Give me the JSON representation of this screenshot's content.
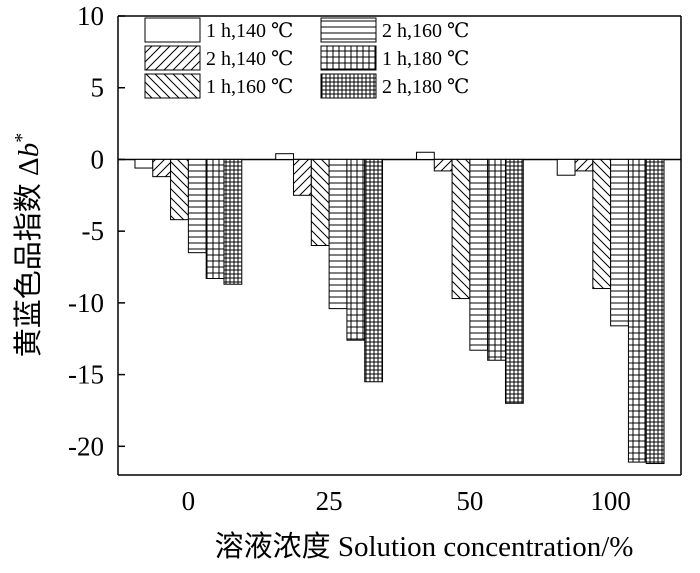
{
  "chart_data": {
    "type": "bar",
    "xlabel": "溶液浓度 Solution concentration/%",
    "ylabel_text": "黄蓝色品指数 Δ",
    "ylabel_symbol": "b",
    "ylabel_sup": "*",
    "categories": [
      "0",
      "25",
      "50",
      "100"
    ],
    "ylim": [
      -22,
      10
    ],
    "yticks": [
      10,
      5,
      0,
      -5,
      -10,
      -15,
      -20
    ],
    "legend_position": "top-left",
    "grid": false,
    "series": [
      {
        "name": "1 h,140 ℃",
        "pattern": "blank",
        "values": [
          -0.6,
          0.4,
          0.5,
          -1.1
        ]
      },
      {
        "name": "2 h,140 ℃",
        "pattern": "diag-up",
        "values": [
          -1.2,
          -2.5,
          -0.8,
          -0.8
        ]
      },
      {
        "name": "1 h,160 ℃",
        "pattern": "diag-down",
        "values": [
          -4.2,
          -6.0,
          -9.7,
          -9.0
        ]
      },
      {
        "name": "2 h,160 ℃",
        "pattern": "horizontal",
        "values": [
          -6.5,
          -10.4,
          -13.3,
          -11.6
        ]
      },
      {
        "name": "1 h,180 ℃",
        "pattern": "grid",
        "values": [
          -8.3,
          -12.6,
          -14.0,
          -21.1
        ]
      },
      {
        "name": "2 h,180 ℃",
        "pattern": "dense-grid",
        "values": [
          -8.7,
          -15.5,
          -17.0,
          -21.2
        ]
      }
    ]
  }
}
